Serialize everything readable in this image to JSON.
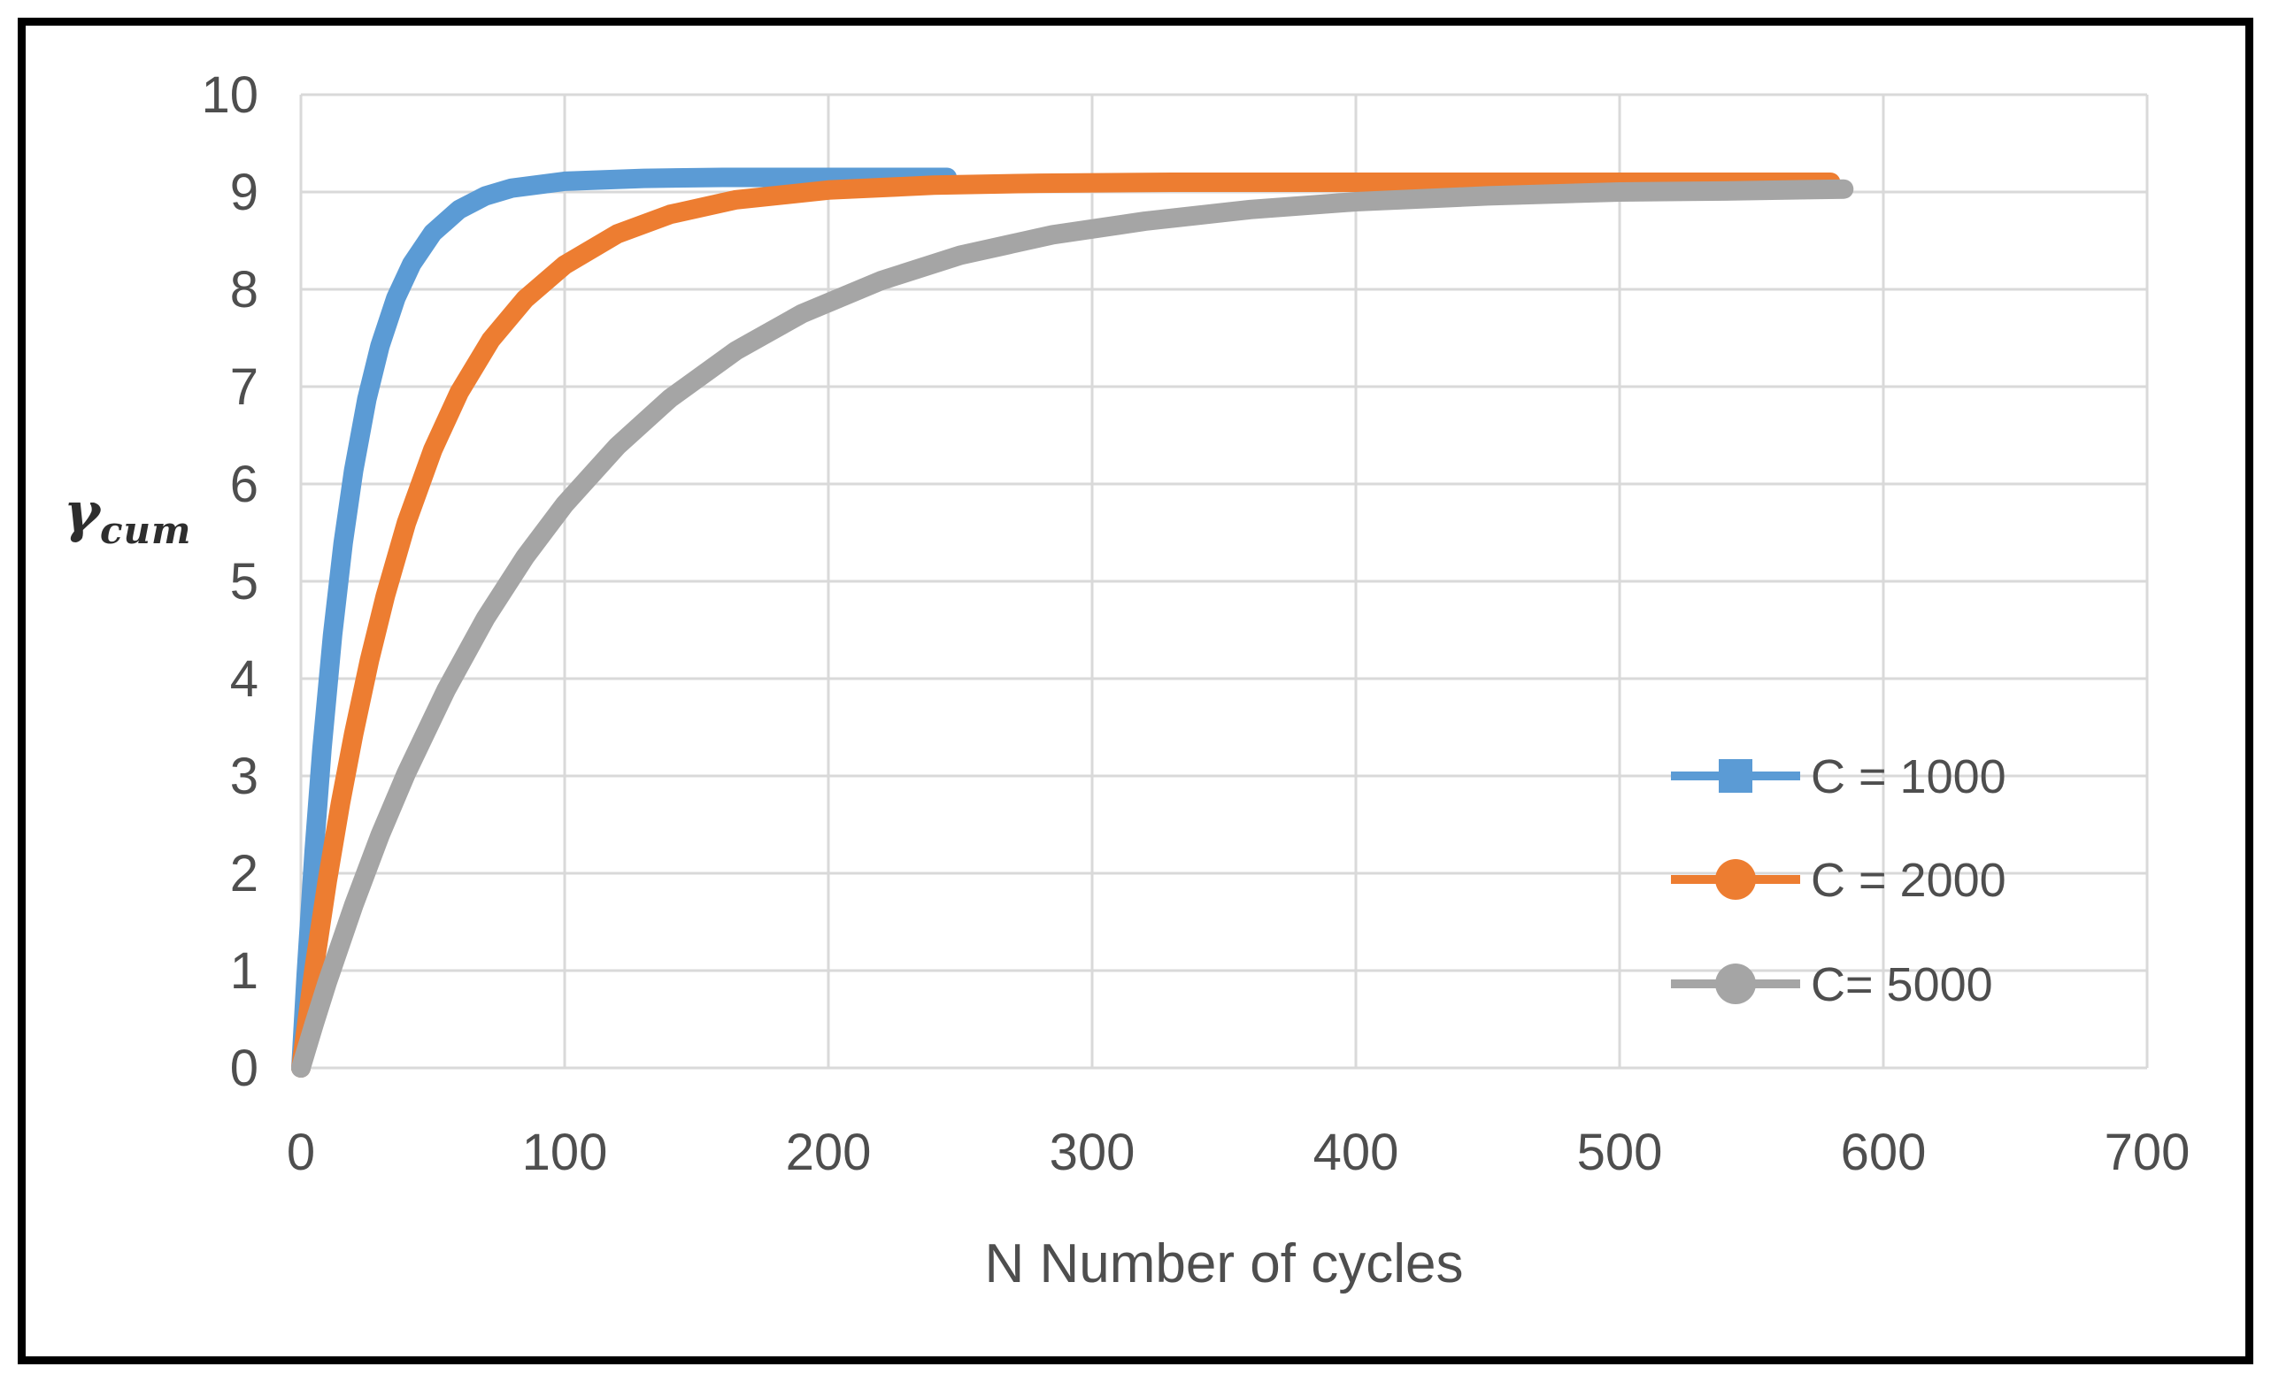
{
  "chart_data": {
    "type": "line",
    "title": "",
    "xlabel": "N Number of cycles",
    "ylabel_main": "γ",
    "ylabel_sub": "cum",
    "xlim": [
      0,
      700
    ],
    "ylim": [
      0,
      10
    ],
    "x_ticks": [
      0,
      100,
      200,
      300,
      400,
      500,
      600,
      700
    ],
    "y_ticks": [
      0,
      1,
      2,
      3,
      4,
      5,
      6,
      7,
      8,
      9,
      10
    ],
    "grid": true,
    "legend_position": "inside-right",
    "series": [
      {
        "name": "C = 1000",
        "color": "#5B9BD5",
        "marker": "square",
        "points": [
          [
            0,
            0
          ],
          [
            2,
            0.96
          ],
          [
            5,
            2.22
          ],
          [
            8,
            3.28
          ],
          [
            12,
            4.45
          ],
          [
            16,
            5.39
          ],
          [
            20,
            6.14
          ],
          [
            25,
            6.87
          ],
          [
            30,
            7.42
          ],
          [
            36,
            7.91
          ],
          [
            42,
            8.26
          ],
          [
            50,
            8.58
          ],
          [
            60,
            8.82
          ],
          [
            70,
            8.96
          ],
          [
            80,
            9.04
          ],
          [
            100,
            9.11
          ],
          [
            130,
            9.14
          ],
          [
            160,
            9.15
          ],
          [
            200,
            9.15
          ],
          [
            245,
            9.15
          ]
        ]
      },
      {
        "name": "C = 2000",
        "color": "#ED7D31",
        "marker": "circle",
        "points": [
          [
            0,
            0
          ],
          [
            5,
            1.02
          ],
          [
            10,
            1.92
          ],
          [
            15,
            2.72
          ],
          [
            20,
            3.43
          ],
          [
            26,
            4.19
          ],
          [
            32,
            4.85
          ],
          [
            40,
            5.6
          ],
          [
            50,
            6.35
          ],
          [
            60,
            6.94
          ],
          [
            72,
            7.48
          ],
          [
            85,
            7.9
          ],
          [
            100,
            8.25
          ],
          [
            120,
            8.57
          ],
          [
            140,
            8.77
          ],
          [
            165,
            8.92
          ],
          [
            200,
            9.02
          ],
          [
            240,
            9.07
          ],
          [
            280,
            9.09
          ],
          [
            330,
            9.1
          ],
          [
            400,
            9.1
          ],
          [
            480,
            9.1
          ],
          [
            580,
            9.1
          ]
        ]
      },
      {
        "name": "C= 5000",
        "color": "#A5A5A5",
        "marker": "circle",
        "points": [
          [
            0,
            0
          ],
          [
            5,
            0.45
          ],
          [
            10,
            0.88
          ],
          [
            20,
            1.67
          ],
          [
            30,
            2.39
          ],
          [
            40,
            3.03
          ],
          [
            55,
            3.88
          ],
          [
            70,
            4.62
          ],
          [
            85,
            5.25
          ],
          [
            100,
            5.79
          ],
          [
            120,
            6.39
          ],
          [
            140,
            6.88
          ],
          [
            165,
            7.37
          ],
          [
            190,
            7.75
          ],
          [
            220,
            8.09
          ],
          [
            250,
            8.35
          ],
          [
            285,
            8.56
          ],
          [
            320,
            8.7
          ],
          [
            360,
            8.82
          ],
          [
            400,
            8.9
          ],
          [
            450,
            8.96
          ],
          [
            500,
            9.0
          ],
          [
            540,
            9.01
          ],
          [
            585,
            9.03
          ]
        ]
      }
    ]
  },
  "colors": {
    "grid": "#D9D9D9",
    "tick_text": "#4E4E4E",
    "frame": "#000000",
    "background": "#FFFFFF"
  }
}
